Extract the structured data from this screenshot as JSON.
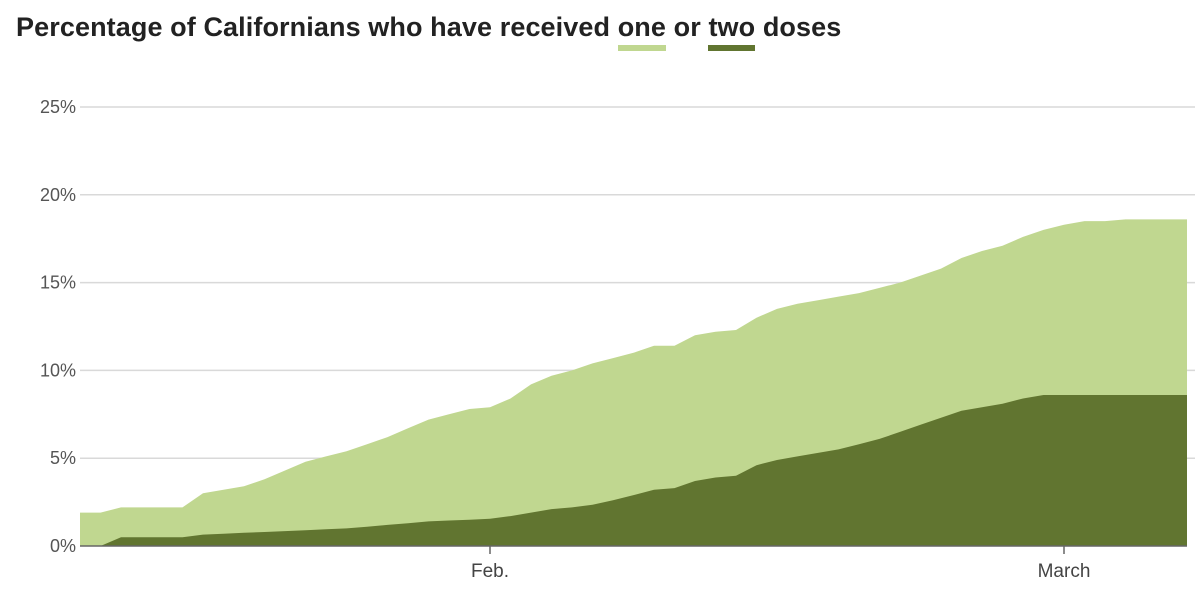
{
  "title": {
    "prefix": "Percentage of Californians who have received ",
    "key_one": "one",
    "middle": " or ",
    "key_two": "two",
    "suffix": " doses"
  },
  "colors": {
    "one_dose": "#c0d790",
    "two_doses": "#617530",
    "grid": "#d9d9d9",
    "axis": "#666666"
  },
  "chart_data": {
    "type": "area",
    "title": "Percentage of Californians who have received one or two doses",
    "xlabel": "",
    "ylabel": "",
    "ylim": [
      0,
      25
    ],
    "y_ticks": [
      "0%",
      "5%",
      "10%",
      "15%",
      "20%",
      "25%"
    ],
    "x_ticks": [
      {
        "label": "Feb.",
        "day": 20
      },
      {
        "label": "March",
        "day": 48
      }
    ],
    "grid": true,
    "stacking": "overlapping",
    "x_days": [
      0,
      1,
      2,
      3,
      4,
      5,
      6,
      7,
      8,
      9,
      10,
      11,
      12,
      13,
      14,
      15,
      16,
      17,
      18,
      19,
      20,
      21,
      22,
      23,
      24,
      25,
      26,
      27,
      28,
      29,
      30,
      31,
      32,
      33,
      34,
      35,
      36,
      37,
      38,
      39,
      40,
      41,
      42,
      43,
      44,
      45,
      46,
      47,
      48,
      49,
      50,
      51,
      52,
      53,
      54
    ],
    "series": [
      {
        "name": "one",
        "values": [
          1.9,
          1.9,
          2.2,
          2.2,
          2.2,
          2.2,
          3.0,
          3.2,
          3.4,
          3.8,
          4.3,
          4.8,
          5.1,
          5.4,
          5.8,
          6.2,
          6.7,
          7.2,
          7.5,
          7.8,
          7.9,
          8.4,
          9.2,
          9.7,
          10.0,
          10.4,
          10.7,
          11.0,
          11.4,
          11.4,
          12.0,
          12.2,
          12.3,
          13.0,
          13.5,
          13.8,
          14.0,
          14.2,
          14.4,
          14.7,
          15.0,
          15.4,
          15.8,
          16.4,
          16.8,
          17.1,
          17.6,
          18.0,
          18.3,
          18.5,
          18.5,
          18.6,
          18.6,
          18.6,
          18.6
        ]
      },
      {
        "name": "two",
        "values": [
          0,
          0,
          0.5,
          0.5,
          0.5,
          0.5,
          0.65,
          0.7,
          0.75,
          0.8,
          0.85,
          0.9,
          0.95,
          1.0,
          1.1,
          1.2,
          1.3,
          1.4,
          1.45,
          1.5,
          1.55,
          1.7,
          1.9,
          2.1,
          2.2,
          2.35,
          2.6,
          2.9,
          3.2,
          3.3,
          3.7,
          3.9,
          4.0,
          4.6,
          4.9,
          5.1,
          5.3,
          5.5,
          5.8,
          6.1,
          6.5,
          6.9,
          7.3,
          7.7,
          7.9,
          8.1,
          8.4,
          8.6,
          8.6,
          8.6,
          8.6,
          8.6,
          8.6,
          8.6,
          8.6
        ]
      }
    ]
  }
}
